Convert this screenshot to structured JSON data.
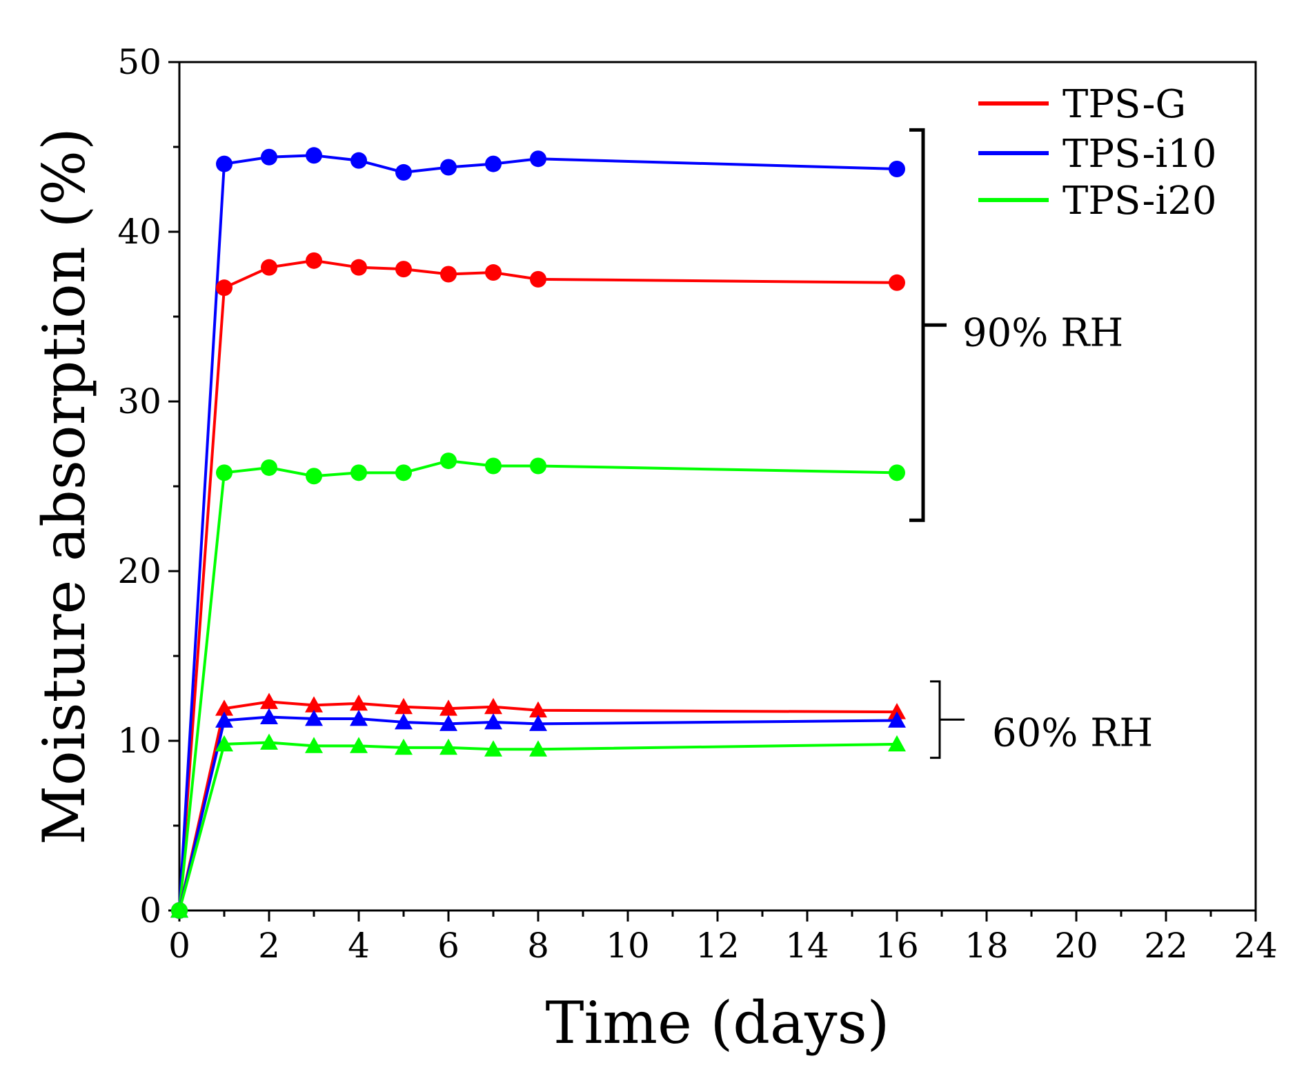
{
  "chart_data": {
    "type": "line",
    "title": "",
    "xlabel": "Time (days)",
    "ylabel": "Moisture absorption (%)",
    "xlim": [
      0,
      24
    ],
    "ylim": [
      0,
      50
    ],
    "xticks": [
      0,
      2,
      4,
      6,
      8,
      10,
      12,
      14,
      16,
      18,
      20,
      22,
      24
    ],
    "yticks": [
      0,
      10,
      20,
      30,
      40,
      50
    ],
    "xtick_labels": [
      "0",
      "2",
      "4",
      "6",
      "8",
      "10",
      "12",
      "14",
      "16",
      "18",
      "20",
      "22",
      "24"
    ],
    "ytick_labels": [
      "0",
      "10",
      "20",
      "30",
      "40",
      "50"
    ],
    "grid": false,
    "legend_position": "top-right",
    "series": [
      {
        "name": "TPS-G",
        "group": "90% RH",
        "marker": "circle",
        "color": "#ff0000",
        "x": [
          0,
          1,
          2,
          3,
          4,
          5,
          6,
          7,
          8,
          16
        ],
        "y": [
          0,
          36.7,
          37.9,
          38.3,
          37.9,
          37.8,
          37.5,
          37.6,
          37.2,
          37.0
        ]
      },
      {
        "name": "TPS-i10",
        "group": "90% RH",
        "marker": "circle",
        "color": "#0000ff",
        "x": [
          0,
          1,
          2,
          3,
          4,
          5,
          6,
          7,
          8,
          16
        ],
        "y": [
          0,
          44.0,
          44.4,
          44.5,
          44.2,
          43.5,
          43.8,
          44.0,
          44.3,
          43.7
        ]
      },
      {
        "name": "TPS-i20",
        "group": "90% RH",
        "marker": "circle",
        "color": "#00ff00",
        "x": [
          0,
          1,
          2,
          3,
          4,
          5,
          6,
          7,
          8,
          16
        ],
        "y": [
          0,
          25.8,
          26.1,
          25.6,
          25.8,
          25.8,
          26.5,
          26.2,
          26.2,
          25.8
        ]
      },
      {
        "name": "TPS-G",
        "group": "60% RH",
        "marker": "triangle",
        "color": "#ff0000",
        "x": [
          0,
          1,
          2,
          3,
          4,
          5,
          6,
          7,
          8,
          16
        ],
        "y": [
          0,
          11.9,
          12.3,
          12.1,
          12.2,
          12.0,
          11.9,
          12.0,
          11.8,
          11.7
        ]
      },
      {
        "name": "TPS-i10",
        "group": "60% RH",
        "marker": "triangle",
        "color": "#0000ff",
        "x": [
          0,
          1,
          2,
          3,
          4,
          5,
          6,
          7,
          8,
          16
        ],
        "y": [
          0,
          11.2,
          11.4,
          11.3,
          11.3,
          11.1,
          11.0,
          11.1,
          11.0,
          11.2
        ]
      },
      {
        "name": "TPS-i20",
        "group": "60% RH",
        "marker": "triangle",
        "color": "#00ff00",
        "x": [
          0,
          1,
          2,
          3,
          4,
          5,
          6,
          7,
          8,
          16
        ],
        "y": [
          0,
          9.8,
          9.9,
          9.7,
          9.7,
          9.6,
          9.6,
          9.5,
          9.5,
          9.8
        ]
      }
    ],
    "legend": [
      {
        "label": "TPS-G",
        "color": "#ff0000"
      },
      {
        "label": "TPS-i10",
        "color": "#0000ff"
      },
      {
        "label": "TPS-i20",
        "color": "#00ff00"
      }
    ],
    "annotations": [
      {
        "text": "90% RH",
        "y_from": 23.0,
        "y_to": 46.0
      },
      {
        "text": "60% RH",
        "y_from": 9.0,
        "y_to": 13.5
      }
    ]
  }
}
